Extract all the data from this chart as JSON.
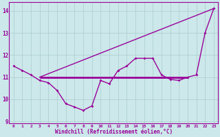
{
  "hours": [
    0,
    1,
    2,
    3,
    4,
    5,
    6,
    7,
    8,
    9,
    10,
    11,
    12,
    13,
    14,
    15,
    16,
    17,
    18,
    19,
    20,
    21,
    22,
    23
  ],
  "temp_line": [
    11.5,
    11.3,
    11.1,
    10.85,
    10.75,
    10.4,
    9.8,
    9.65,
    9.5,
    9.7,
    10.85,
    10.7,
    11.3,
    11.5,
    11.85,
    11.85,
    11.85,
    11.1,
    10.9,
    10.85,
    11.0,
    11.1,
    13.0,
    14.1
  ],
  "diag_line_x": [
    3,
    23
  ],
  "diag_line_y": [
    11.0,
    14.1
  ],
  "horiz_line_x": [
    3,
    20
  ],
  "horiz_line_y": 11.0,
  "bg_color": "#cce8ea",
  "line_color": "#990099",
  "grid_color": "#aacccc",
  "xlim": [
    -0.5,
    23.5
  ],
  "ylim": [
    8.9,
    14.4
  ],
  "xlabel": "Windchill (Refroidissement éolien,°C)",
  "yticks": [
    9,
    10,
    11,
    12,
    13,
    14
  ],
  "xticks": [
    0,
    1,
    2,
    3,
    4,
    5,
    6,
    7,
    8,
    9,
    10,
    11,
    12,
    13,
    14,
    15,
    16,
    17,
    18,
    19,
    20,
    21,
    22,
    23
  ]
}
